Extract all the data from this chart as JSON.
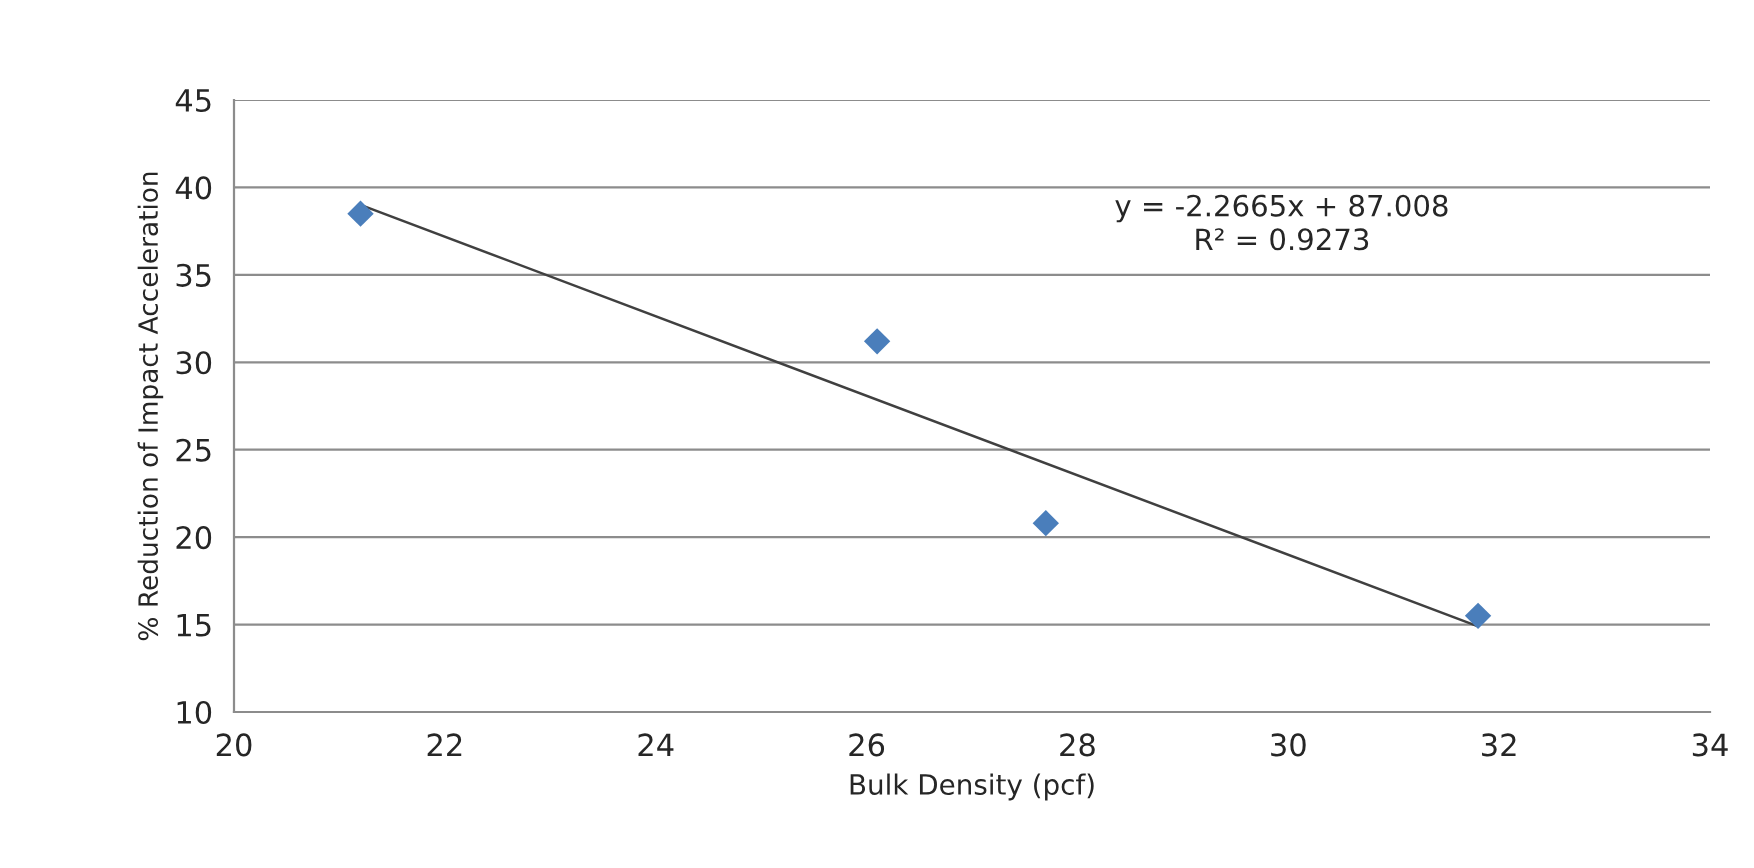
{
  "chart_data": {
    "type": "scatter",
    "xlabel": "Bulk Density (pcf)",
    "ylabel": "% Reduction of Impact Acceleration",
    "series": [
      {
        "color": "#4a7ebb",
        "marker": "diamond",
        "x": [
          21.2,
          26.1,
          27.7,
          31.8
        ],
        "values": [
          38.5,
          31.2,
          20.8,
          15.5
        ]
      },
      {
        "type": "line",
        "color": "#404040",
        "marker": "none",
        "x": [
          21.2,
          31.8
        ],
        "values": [
          39.0,
          14.9
        ]
      }
    ],
    "annotations": [
      "y = -2.2665x + 87.008",
      "R² = 0.9273"
    ],
    "xlim": [
      20,
      34
    ],
    "xticks": [
      20,
      22,
      24,
      26,
      28,
      30,
      32,
      34
    ],
    "ylim": [
      10,
      45
    ],
    "yticks": [
      10,
      15,
      20,
      25,
      30,
      35,
      40,
      45
    ],
    "grid": "y",
    "legend": false
  }
}
